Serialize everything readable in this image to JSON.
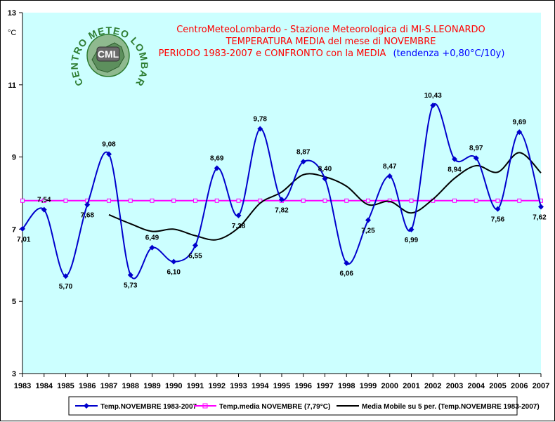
{
  "chart_data": {
    "type": "line",
    "title_lines": [
      "CentroMeteoLombardo - Stazione Meteorologica di MI-S.LEONARDO",
      "TEMPERATURA MEDIA del mese di NOVEMBRE",
      "PERIODO 1983-2007 e CONFRONTO con la MEDIA"
    ],
    "trend_text": "(tendenza +0,80°C/10y)",
    "ylabel": "°C",
    "ylim": [
      3,
      13
    ],
    "yticks": [
      3,
      5,
      7,
      9,
      11,
      13
    ],
    "x": [
      "1983",
      "1984",
      "1985",
      "1986",
      "1987",
      "1988",
      "1989",
      "1990",
      "1991",
      "1992",
      "1993",
      "1994",
      "1995",
      "1996",
      "1997",
      "1998",
      "1999",
      "2000",
      "2001",
      "2002",
      "2003",
      "2004",
      "2005",
      "2006",
      "2007"
    ],
    "grid": false,
    "legend_position": "bottom",
    "series": [
      {
        "name": "Temp.NOVEMBRE 1983-2007",
        "color": "#0000cc",
        "marker": "diamond",
        "values": [
          7.01,
          7.54,
          5.7,
          7.68,
          9.08,
          5.73,
          6.49,
          6.1,
          6.55,
          8.69,
          7.38,
          9.78,
          7.82,
          8.87,
          8.4,
          6.06,
          7.25,
          8.47,
          6.99,
          10.43,
          8.94,
          8.97,
          7.56,
          9.69,
          7.62
        ],
        "labels": [
          "7,01",
          "7,54",
          "5,70",
          "7,68",
          "9,08",
          "5,73",
          "6,49",
          "6,10",
          "6,55",
          "8,69",
          "7,38",
          "9,78",
          "7,82",
          "8,87",
          "8,40",
          "6,06",
          "7,25",
          "8,47",
          "6,99",
          "10,43",
          "8,94",
          "8,97",
          "7,56",
          "9,69",
          "7,62"
        ]
      },
      {
        "name": "Temp.media NOVEMBRE (7,79°C)",
        "color": "#ff00ff",
        "marker": "square",
        "values": [
          7.79,
          7.79,
          7.79,
          7.79,
          7.79,
          7.79,
          7.79,
          7.79,
          7.79,
          7.79,
          7.79,
          7.79,
          7.79,
          7.79,
          7.79,
          7.79,
          7.79,
          7.79,
          7.79,
          7.79,
          7.79,
          7.79,
          7.79,
          7.79,
          7.79
        ]
      },
      {
        "name": "Media Mobile su 5 per. (Temp.NOVEMBRE 1983-2007)",
        "color": "#000000",
        "marker": "none",
        "values": [
          null,
          null,
          null,
          null,
          7.4,
          7.15,
          6.94,
          7.0,
          6.82,
          6.71,
          7.04,
          7.72,
          8.03,
          8.51,
          8.45,
          8.19,
          7.68,
          7.77,
          7.45,
          7.83,
          8.41,
          8.76,
          8.58,
          9.12,
          8.56
        ]
      }
    ]
  },
  "logo": {
    "arc_text": "CENTRO METEO LOMBARDO",
    "badge_text": "CML"
  },
  "colors": {
    "plot_bg": "#ccffff",
    "title_red": "#ff0000",
    "trend_blue": "#0000ff",
    "logo_green": "#2e7d32"
  }
}
